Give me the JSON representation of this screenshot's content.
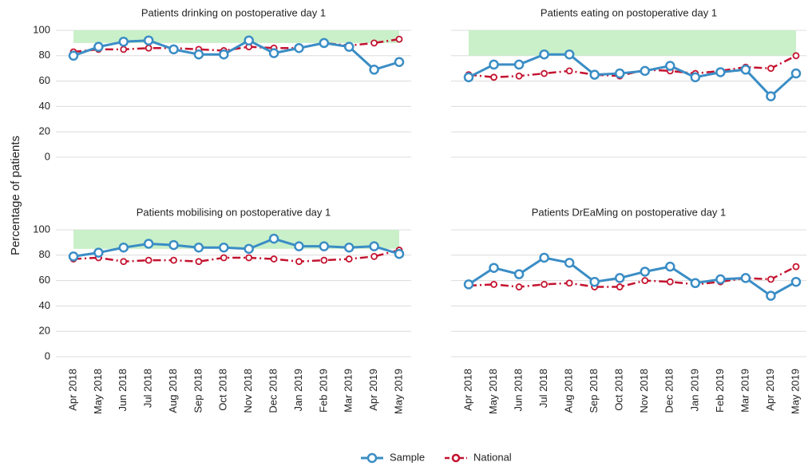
{
  "chart_data": {
    "type": "line",
    "ylabel": "Percentage of patients",
    "categories": [
      "Apr 2018",
      "May 2018",
      "Jun 2018",
      "Jul 2018",
      "Aug 2018",
      "Sep 2018",
      "Oct 2018",
      "Nov 2018",
      "Dec 2018",
      "Jan 2019",
      "Feb 2019",
      "Mar 2019",
      "Apr 2019",
      "May 2019"
    ],
    "ylim": [
      0,
      100
    ],
    "yticks": [
      0,
      20,
      40,
      60,
      80,
      100
    ],
    "grid": true,
    "legend": "bottom",
    "band_color": "#c9f0c9",
    "series": [
      {
        "name": "Sample",
        "color": "#3a8dc5",
        "dashed": false
      },
      {
        "name": "National",
        "color": "#c4122f",
        "dashed": true
      }
    ],
    "panels": [
      {
        "title": "Patients drinking on postoperative day 1",
        "target_band": [
          90,
          100
        ],
        "values": [
          [
            80,
            87,
            91,
            92,
            85,
            81,
            81,
            92,
            82,
            86,
            90,
            87,
            69,
            75
          ],
          [
            83,
            85,
            85,
            86,
            86,
            85,
            84,
            87,
            86,
            86,
            90,
            88,
            90,
            93
          ]
        ]
      },
      {
        "title": "Patients eating on postoperative day 1",
        "target_band": [
          80,
          100
        ],
        "values": [
          [
            63,
            73,
            73,
            81,
            81,
            65,
            66,
            68,
            72,
            63,
            67,
            69,
            48,
            66
          ],
          [
            65,
            63,
            64,
            66,
            68,
            65,
            64,
            69,
            68,
            66,
            68,
            71,
            70,
            80
          ]
        ]
      },
      {
        "title": "Patients mobilising on postoperative day 1",
        "target_band": [
          85,
          100
        ],
        "values": [
          [
            79,
            82,
            86,
            89,
            88,
            86,
            86,
            85,
            93,
            87,
            87,
            86,
            87,
            81
          ],
          [
            77,
            78,
            75,
            76,
            76,
            75,
            78,
            78,
            77,
            75,
            76,
            77,
            79,
            84
          ]
        ]
      },
      {
        "title": "Patients DrEaMing on postoperative day 1",
        "target_band": null,
        "values": [
          [
            57,
            70,
            65,
            78,
            74,
            59,
            62,
            67,
            71,
            58,
            61,
            62,
            48,
            59
          ],
          [
            56,
            57,
            55,
            57,
            58,
            55,
            55,
            60,
            59,
            57,
            59,
            62,
            61,
            71
          ]
        ]
      }
    ]
  }
}
